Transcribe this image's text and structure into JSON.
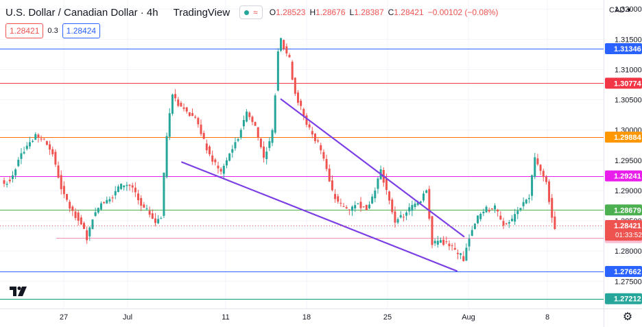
{
  "header": {
    "symbol_title": "U.S. Dollar / Canadian Dollar · 4h",
    "provider": "TradingView",
    "ohlc": {
      "open_label": "O",
      "open": "1.28523",
      "high_label": "H",
      "high": "1.28676",
      "low_label": "L",
      "low": "1.28387",
      "close_label": "C",
      "close": "1.28421",
      "change": "−0.00102 (−0.08%)"
    },
    "sell_price": "1.28421",
    "spread": "0.3",
    "buy_price": "1.28424",
    "currency": "CAD"
  },
  "colors": {
    "up": "#26a69a",
    "down": "#ef5350",
    "blue_line": "#2962ff",
    "red_line": "#f23645",
    "orange_line": "#ff6d00",
    "magenta_line": "#e91eec",
    "green_line": "#4caf50",
    "pink_line": "#f48fb1",
    "teal_line": "#089981",
    "trend_line": "#7b3fe4"
  },
  "chart_data": {
    "type": "candlestick",
    "instrument": "USDCAD",
    "interval": "4h",
    "y_ticks": [
      "1.32000",
      "1.31500",
      "1.31000",
      "1.30500",
      "1.30000",
      "1.29500",
      "1.29000",
      "1.28500",
      "1.28000",
      "1.27500"
    ],
    "x_ticks": [
      "27",
      "Jul",
      "11",
      "18",
      "25",
      "Aug",
      "8"
    ],
    "ylim": [
      1.2705,
      1.3215
    ],
    "horizontal_levels": [
      {
        "label": "1.31346",
        "value": 1.31346,
        "color": "#2962ff",
        "label_bg": "#2962ff",
        "label_fg": "#ffffff"
      },
      {
        "label": "1.30774",
        "value": 1.30774,
        "color": "#f23645",
        "label_bg": "#f23645",
        "label_fg": "#ffffff"
      },
      {
        "label": "1.29884",
        "value": 1.29884,
        "color": "#ff6d00",
        "label_bg": "#ff9800",
        "label_fg": "#ffffff"
      },
      {
        "label": "1.29241",
        "value": 1.29241,
        "color": "#e91eec",
        "label_bg": "#e91eec",
        "label_fg": "#ffffff"
      },
      {
        "label": "1.28679",
        "value": 1.28679,
        "color": "#4caf50",
        "label_bg": "#4caf50",
        "label_fg": "#ffffff"
      },
      {
        "label": "1.28221",
        "value": 1.28221,
        "color": "#f48fb1",
        "label_bg": "#f8bbd0",
        "label_fg": "#131722"
      },
      {
        "label": "1.27662",
        "value": 1.27662,
        "color": "#2962ff",
        "label_bg": "#2962ff",
        "label_fg": "#ffffff"
      },
      {
        "label": "1.27212",
        "value": 1.27212,
        "color": "#089981",
        "label_bg": "#26a69a",
        "label_fg": "#ffffff"
      }
    ],
    "current_price": {
      "label": "1.28421",
      "countdown": "01:33:52",
      "value": 1.28421,
      "color": "#ef5350"
    },
    "trendlines": [
      {
        "name": "upper-wedge",
        "points": [
          [
            0.4656,
            1.3051
          ],
          [
            0.7685,
            1.2824
          ]
        ]
      },
      {
        "name": "lower-wedge",
        "points": [
          [
            0.3014,
            1.2947
          ],
          [
            0.7568,
            1.2767
          ]
        ]
      }
    ],
    "anchors": [
      {
        "i": 0,
        "c": 1.2911
      },
      {
        "i": 3,
        "c": 1.2925
      },
      {
        "i": 5,
        "c": 1.2955
      },
      {
        "i": 8,
        "c": 1.2975
      },
      {
        "i": 11,
        "c": 1.299
      },
      {
        "i": 14,
        "c": 1.2982
      },
      {
        "i": 17,
        "c": 1.2962
      },
      {
        "i": 20,
        "c": 1.2905
      },
      {
        "i": 23,
        "c": 1.2872
      },
      {
        "i": 26,
        "c": 1.2855
      },
      {
        "i": 29,
        "c": 1.2822
      },
      {
        "i": 31,
        "c": 1.2856
      },
      {
        "i": 34,
        "c": 1.2879
      },
      {
        "i": 37,
        "c": 1.2887
      },
      {
        "i": 40,
        "c": 1.2905
      },
      {
        "i": 43,
        "c": 1.291
      },
      {
        "i": 45,
        "c": 1.2905
      },
      {
        "i": 48,
        "c": 1.2875
      },
      {
        "i": 51,
        "c": 1.286
      },
      {
        "i": 53,
        "c": 1.2848
      },
      {
        "i": 55,
        "c": 1.2858
      },
      {
        "i": 57,
        "c": 1.299
      },
      {
        "i": 59,
        "c": 1.306
      },
      {
        "i": 61,
        "c": 1.3045
      },
      {
        "i": 64,
        "c": 1.303
      },
      {
        "i": 67,
        "c": 1.302
      },
      {
        "i": 70,
        "c": 1.298
      },
      {
        "i": 73,
        "c": 1.295
      },
      {
        "i": 76,
        "c": 1.293
      },
      {
        "i": 79,
        "c": 1.296
      },
      {
        "i": 82,
        "c": 1.299
      },
      {
        "i": 85,
        "c": 1.303
      },
      {
        "i": 88,
        "c": 1.3005
      },
      {
        "i": 91,
        "c": 1.2955
      },
      {
        "i": 94,
        "c": 1.2995
      },
      {
        "i": 96,
        "c": 1.313
      },
      {
        "i": 97,
        "c": 1.315
      },
      {
        "i": 100,
        "c": 1.3115
      },
      {
        "i": 102,
        "c": 1.306
      },
      {
        "i": 104,
        "c": 1.3035
      },
      {
        "i": 107,
        "c": 1.3
      },
      {
        "i": 110,
        "c": 1.2978
      },
      {
        "i": 112,
        "c": 1.2955
      },
      {
        "i": 115,
        "c": 1.2895
      },
      {
        "i": 118,
        "c": 1.2875
      },
      {
        "i": 121,
        "c": 1.2868
      },
      {
        "i": 124,
        "c": 1.288
      },
      {
        "i": 127,
        "c": 1.287
      },
      {
        "i": 130,
        "c": 1.29
      },
      {
        "i": 132,
        "c": 1.2935
      },
      {
        "i": 134,
        "c": 1.29
      },
      {
        "i": 137,
        "c": 1.285
      },
      {
        "i": 140,
        "c": 1.2858
      },
      {
        "i": 143,
        "c": 1.2875
      },
      {
        "i": 146,
        "c": 1.2885
      },
      {
        "i": 148,
        "c": 1.2905
      },
      {
        "i": 150,
        "c": 1.281
      },
      {
        "i": 153,
        "c": 1.2818
      },
      {
        "i": 156,
        "c": 1.2808
      },
      {
        "i": 159,
        "c": 1.2795
      },
      {
        "i": 161,
        "c": 1.2786
      },
      {
        "i": 163,
        "c": 1.2825
      },
      {
        "i": 166,
        "c": 1.2855
      },
      {
        "i": 169,
        "c": 1.287
      },
      {
        "i": 172,
        "c": 1.287
      },
      {
        "i": 175,
        "c": 1.2843
      },
      {
        "i": 178,
        "c": 1.285
      },
      {
        "i": 181,
        "c": 1.2875
      },
      {
        "i": 184,
        "c": 1.289
      },
      {
        "i": 186,
        "c": 1.2955
      },
      {
        "i": 188,
        "c": 1.293
      },
      {
        "i": 190,
        "c": 1.2915
      },
      {
        "i": 192,
        "c": 1.2855
      },
      {
        "i": 193,
        "c": 1.2842
      }
    ],
    "n_bars": 194
  }
}
